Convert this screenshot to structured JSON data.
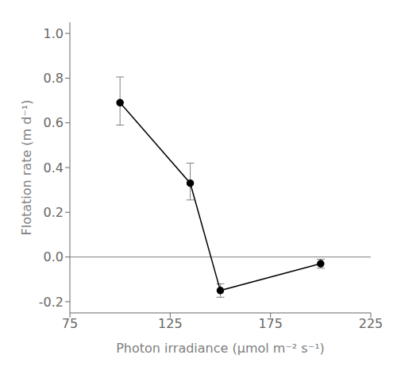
{
  "chart_data": {
    "type": "line",
    "xlabel": "Photon irradiance (μmol m⁻² s⁻¹)",
    "ylabel": "Flotation rate (m d⁻¹)",
    "x": [
      100,
      135,
      150,
      200
    ],
    "values": [
      0.69,
      0.33,
      -0.15,
      -0.03
    ],
    "error_lower": [
      0.1,
      0.075,
      0.03,
      0.02
    ],
    "error_upper": [
      0.115,
      0.09,
      0.03,
      0.02
    ],
    "color": "#000000",
    "error_color": "#808080",
    "marker": "circle",
    "xlim": [
      75,
      225
    ],
    "xticks": [
      75,
      125,
      175,
      225
    ],
    "ylim": [
      -0.25,
      1.05
    ],
    "yticks": [
      -0.2,
      {
        "value": 0.0,
        "label": "0.0"
      },
      0.2,
      0.4,
      0.6,
      0.8,
      {
        "value": 1.0,
        "label": "1.0"
      }
    ],
    "reference_lines": [
      {
        "y": 0.0,
        "color": "#808080"
      }
    ],
    "grid": false
  }
}
